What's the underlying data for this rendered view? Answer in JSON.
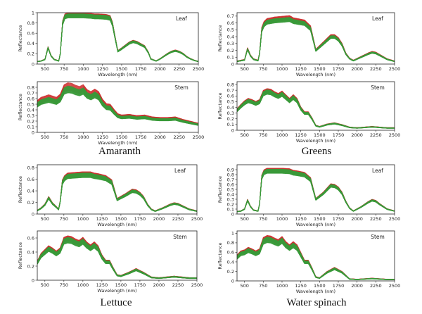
{
  "figure": {
    "groups": [
      {
        "id": "amaranth",
        "label": "Amaranth"
      },
      {
        "id": "greens",
        "label": "Greens"
      },
      {
        "id": "lettuce",
        "label": "Lettuce"
      },
      {
        "id": "water-spinach",
        "label": "Water spinach"
      }
    ],
    "colors": {
      "red": "#cc2a2a",
      "green": "#3a9a3a",
      "axis": "#222222"
    }
  },
  "chart_data": [
    {
      "type": "line",
      "group": "Amaranth",
      "panel": "Leaf",
      "xlabel": "Wavelength (nm)",
      "ylabel": "Reflectance",
      "xlim": [
        400,
        2500
      ],
      "ylim": [
        0,
        1.0
      ],
      "xticks": [
        500,
        750,
        1000,
        1250,
        1500,
        1750,
        2000,
        2250,
        2500
      ],
      "yticks": [
        0.0,
        0.2,
        0.4,
        0.6,
        0.8,
        1.0
      ],
      "series": [
        {
          "name": "red",
          "color": "#cc2a2a",
          "n_curves": 14,
          "spread": 0.035
        },
        {
          "name": "green",
          "color": "#3a9a3a",
          "n_curves": 22,
          "spread": 0.045
        }
      ],
      "base": {
        "x": [
          400,
          450,
          500,
          540,
          580,
          620,
          680,
          700,
          730,
          760,
          800,
          1000,
          1100,
          1150,
          1200,
          1300,
          1350,
          1380,
          1450,
          1500,
          1600,
          1650,
          1700,
          1750,
          1800,
          1850,
          1880,
          1950,
          2000,
          2100,
          2150,
          2200,
          2250,
          2300,
          2350,
          2400,
          2450,
          2500
        ],
        "y": [
          0.05,
          0.06,
          0.09,
          0.32,
          0.16,
          0.09,
          0.06,
          0.2,
          0.8,
          0.93,
          0.95,
          0.95,
          0.94,
          0.93,
          0.93,
          0.92,
          0.9,
          0.78,
          0.25,
          0.3,
          0.41,
          0.44,
          0.42,
          0.38,
          0.34,
          0.22,
          0.1,
          0.06,
          0.1,
          0.2,
          0.24,
          0.26,
          0.24,
          0.2,
          0.14,
          0.1,
          0.07,
          0.05
        ]
      }
    },
    {
      "type": "line",
      "group": "Amaranth",
      "panel": "Stem",
      "xlabel": "Wavelength (nm)",
      "ylabel": "Reflectance",
      "xlim": [
        400,
        2500
      ],
      "ylim": [
        0,
        0.9
      ],
      "xticks": [
        500,
        750,
        1000,
        1250,
        1500,
        1750,
        2000,
        2250,
        2500
      ],
      "yticks": [
        0.0,
        0.1,
        0.2,
        0.3,
        0.4,
        0.5,
        0.6,
        0.7,
        0.8
      ],
      "series": [
        {
          "name": "red",
          "color": "#cc2a2a",
          "n_curves": 14,
          "spread": 0.09
        },
        {
          "name": "green",
          "color": "#3a9a3a",
          "n_curves": 22,
          "spread": 0.08
        }
      ],
      "base": {
        "x": [
          400,
          450,
          500,
          550,
          600,
          650,
          700,
          750,
          800,
          850,
          900,
          950,
          1000,
          1050,
          1100,
          1150,
          1200,
          1250,
          1300,
          1350,
          1400,
          1450,
          1500,
          1600,
          1700,
          1800,
          1900,
          2000,
          2100,
          2200,
          2300,
          2400,
          2500
        ],
        "y": [
          0.5,
          0.55,
          0.57,
          0.59,
          0.57,
          0.55,
          0.6,
          0.75,
          0.78,
          0.77,
          0.74,
          0.72,
          0.75,
          0.67,
          0.64,
          0.68,
          0.64,
          0.52,
          0.45,
          0.44,
          0.36,
          0.29,
          0.27,
          0.28,
          0.26,
          0.27,
          0.24,
          0.23,
          0.23,
          0.24,
          0.2,
          0.17,
          0.14
        ]
      }
    },
    {
      "type": "line",
      "group": "Greens",
      "panel": "Leaf",
      "xlabel": "Wavelength (nm)",
      "ylabel": "Reflectance",
      "xlim": [
        400,
        2500
      ],
      "ylim": [
        0,
        0.75
      ],
      "xticks": [
        500,
        750,
        1000,
        1250,
        1500,
        1750,
        2000,
        2250,
        2500
      ],
      "yticks": [
        0.0,
        0.1,
        0.2,
        0.3,
        0.4,
        0.5,
        0.6,
        0.7
      ],
      "series": [
        {
          "name": "red",
          "color": "#cc2a2a",
          "n_curves": 14,
          "spread": 0.05
        },
        {
          "name": "green",
          "color": "#3a9a3a",
          "n_curves": 22,
          "spread": 0.05
        }
      ],
      "base": {
        "x": [
          400,
          450,
          500,
          540,
          580,
          620,
          680,
          700,
          730,
          760,
          800,
          900,
          1000,
          1100,
          1150,
          1200,
          1300,
          1380,
          1450,
          1550,
          1650,
          1700,
          1750,
          1800,
          1850,
          1900,
          1950,
          2050,
          2150,
          2200,
          2250,
          2300,
          2400,
          2500
        ],
        "y": [
          0.04,
          0.05,
          0.06,
          0.22,
          0.12,
          0.07,
          0.05,
          0.15,
          0.5,
          0.58,
          0.62,
          0.64,
          0.65,
          0.66,
          0.63,
          0.62,
          0.6,
          0.52,
          0.2,
          0.3,
          0.4,
          0.4,
          0.36,
          0.28,
          0.15,
          0.08,
          0.05,
          0.1,
          0.15,
          0.17,
          0.16,
          0.13,
          0.07,
          0.04
        ]
      }
    },
    {
      "type": "line",
      "group": "Greens",
      "panel": "Stem",
      "xlabel": "Wavelength (nm)",
      "ylabel": "Reflectance",
      "xlim": [
        400,
        2500
      ],
      "ylim": [
        0,
        0.85
      ],
      "xticks": [
        500,
        750,
        1000,
        1250,
        1500,
        1750,
        2000,
        2250,
        2500
      ],
      "yticks": [
        0.0,
        0.1,
        0.2,
        0.3,
        0.4,
        0.5,
        0.6,
        0.7,
        0.8
      ],
      "series": [
        {
          "name": "red",
          "color": "#cc2a2a",
          "n_curves": 14,
          "spread": 0.05
        },
        {
          "name": "green",
          "color": "#3a9a3a",
          "n_curves": 22,
          "spread": 0.06
        }
      ],
      "base": {
        "x": [
          400,
          450,
          500,
          550,
          600,
          650,
          700,
          750,
          800,
          850,
          900,
          950,
          1000,
          1050,
          1100,
          1150,
          1200,
          1250,
          1300,
          1350,
          1400,
          1450,
          1500,
          1600,
          1700,
          1800,
          1900,
          2000,
          2100,
          2200,
          2300,
          2400,
          2500
        ],
        "y": [
          0.35,
          0.42,
          0.48,
          0.52,
          0.5,
          0.47,
          0.5,
          0.65,
          0.68,
          0.67,
          0.63,
          0.6,
          0.64,
          0.58,
          0.52,
          0.58,
          0.52,
          0.38,
          0.3,
          0.3,
          0.2,
          0.08,
          0.06,
          0.1,
          0.12,
          0.09,
          0.05,
          0.04,
          0.05,
          0.06,
          0.05,
          0.04,
          0.04
        ]
      }
    },
    {
      "type": "line",
      "group": "Lettuce",
      "panel": "Leaf",
      "xlabel": "Wavelength (nm)",
      "ylabel": "Reflectance",
      "xlim": [
        400,
        2500
      ],
      "ylim": [
        0,
        0.85
      ],
      "xticks": [
        500,
        750,
        1000,
        1250,
        1500,
        1750,
        2000,
        2250,
        2500
      ],
      "yticks": [
        0.0,
        0.2,
        0.4,
        0.6,
        0.8
      ],
      "series": [
        {
          "name": "red",
          "color": "#cc2a2a",
          "n_curves": 14,
          "spread": 0.05
        },
        {
          "name": "green",
          "color": "#3a9a3a",
          "n_curves": 22,
          "spread": 0.06
        }
      ],
      "base": {
        "x": [
          400,
          450,
          500,
          550,
          600,
          650,
          680,
          700,
          730,
          760,
          800,
          900,
          1000,
          1100,
          1150,
          1200,
          1300,
          1380,
          1450,
          1550,
          1650,
          1700,
          1750,
          1800,
          1850,
          1900,
          1950,
          2050,
          2150,
          2200,
          2250,
          2300,
          2400,
          2500
        ],
        "y": [
          0.06,
          0.1,
          0.16,
          0.28,
          0.18,
          0.12,
          0.08,
          0.2,
          0.55,
          0.62,
          0.66,
          0.67,
          0.68,
          0.68,
          0.66,
          0.65,
          0.62,
          0.55,
          0.25,
          0.32,
          0.4,
          0.39,
          0.35,
          0.28,
          0.16,
          0.08,
          0.05,
          0.1,
          0.16,
          0.18,
          0.17,
          0.14,
          0.08,
          0.05
        ]
      }
    },
    {
      "type": "line",
      "group": "Lettuce",
      "panel": "Stem",
      "xlabel": "Wavelength (nm)",
      "ylabel": "Reflectance",
      "xlim": [
        400,
        2500
      ],
      "ylim": [
        0,
        0.7
      ],
      "xticks": [
        500,
        750,
        1000,
        1250,
        1500,
        1750,
        2000,
        2250,
        2500
      ],
      "yticks": [
        0.0,
        0.2,
        0.4,
        0.6
      ],
      "series": [
        {
          "name": "red",
          "color": "#cc2a2a",
          "n_curves": 14,
          "spread": 0.06
        },
        {
          "name": "green",
          "color": "#3a9a3a",
          "n_curves": 22,
          "spread": 0.07
        }
      ],
      "base": {
        "x": [
          400,
          450,
          500,
          550,
          600,
          650,
          700,
          750,
          800,
          850,
          900,
          950,
          1000,
          1050,
          1100,
          1150,
          1200,
          1250,
          1300,
          1350,
          1400,
          1450,
          1500,
          1600,
          1700,
          1800,
          1900,
          2000,
          2100,
          2200,
          2300,
          2400,
          2500
        ],
        "y": [
          0.25,
          0.35,
          0.4,
          0.45,
          0.42,
          0.38,
          0.42,
          0.56,
          0.58,
          0.57,
          0.54,
          0.52,
          0.56,
          0.5,
          0.46,
          0.5,
          0.45,
          0.33,
          0.26,
          0.26,
          0.16,
          0.07,
          0.06,
          0.1,
          0.15,
          0.1,
          0.04,
          0.03,
          0.04,
          0.05,
          0.04,
          0.03,
          0.03
        ]
      }
    },
    {
      "type": "line",
      "group": "Water spinach",
      "panel": "Leaf",
      "xlabel": "Wavelength (nm)",
      "ylabel": "Reflectance",
      "xlim": [
        400,
        2500
      ],
      "ylim": [
        0,
        1.0
      ],
      "xticks": [
        500,
        750,
        1000,
        1250,
        1500,
        1750,
        2000,
        2250,
        2500
      ],
      "yticks": [
        0.0,
        0.1,
        0.2,
        0.3,
        0.4,
        0.5,
        0.6,
        0.7,
        0.8,
        0.9
      ],
      "series": [
        {
          "name": "red",
          "color": "#cc2a2a",
          "n_curves": 14,
          "spread": 0.04
        },
        {
          "name": "green",
          "color": "#3a9a3a",
          "n_curves": 22,
          "spread": 0.05
        }
      ],
      "base": {
        "x": [
          400,
          450,
          500,
          540,
          580,
          620,
          680,
          700,
          730,
          760,
          800,
          900,
          1000,
          1100,
          1150,
          1200,
          1300,
          1380,
          1450,
          1550,
          1650,
          1700,
          1750,
          1800,
          1850,
          1900,
          1950,
          2050,
          2150,
          2200,
          2250,
          2300,
          2400,
          2500
        ],
        "y": [
          0.05,
          0.06,
          0.1,
          0.28,
          0.15,
          0.08,
          0.06,
          0.2,
          0.75,
          0.85,
          0.88,
          0.88,
          0.88,
          0.87,
          0.84,
          0.83,
          0.8,
          0.7,
          0.3,
          0.42,
          0.58,
          0.57,
          0.52,
          0.42,
          0.25,
          0.12,
          0.06,
          0.14,
          0.24,
          0.28,
          0.26,
          0.2,
          0.1,
          0.06
        ]
      }
    },
    {
      "type": "line",
      "group": "Water spinach",
      "panel": "Stem",
      "xlabel": "Wavelength (nm)",
      "ylabel": "Reflectance",
      "xlim": [
        400,
        2500
      ],
      "ylim": [
        0,
        1.05
      ],
      "xticks": [
        500,
        750,
        1000,
        1250,
        1500,
        1750,
        2000,
        2250,
        2500
      ],
      "yticks": [
        0.0,
        0.2,
        0.4,
        0.6,
        0.8,
        1.0
      ],
      "series": [
        {
          "name": "red",
          "color": "#cc2a2a",
          "n_curves": 14,
          "spread": 0.06
        },
        {
          "name": "green",
          "color": "#3a9a3a",
          "n_curves": 22,
          "spread": 0.07
        }
      ],
      "base": {
        "x": [
          400,
          450,
          500,
          550,
          600,
          650,
          700,
          750,
          800,
          850,
          900,
          950,
          1000,
          1050,
          1100,
          1150,
          1200,
          1250,
          1300,
          1350,
          1400,
          1450,
          1500,
          1600,
          1700,
          1800,
          1900,
          2000,
          2100,
          2200,
          2300,
          2400,
          2500
        ],
        "y": [
          0.5,
          0.58,
          0.6,
          0.65,
          0.62,
          0.58,
          0.62,
          0.84,
          0.88,
          0.87,
          0.83,
          0.8,
          0.86,
          0.76,
          0.7,
          0.76,
          0.7,
          0.55,
          0.4,
          0.4,
          0.25,
          0.08,
          0.06,
          0.18,
          0.26,
          0.18,
          0.04,
          0.03,
          0.04,
          0.05,
          0.04,
          0.03,
          0.03
        ]
      }
    }
  ]
}
